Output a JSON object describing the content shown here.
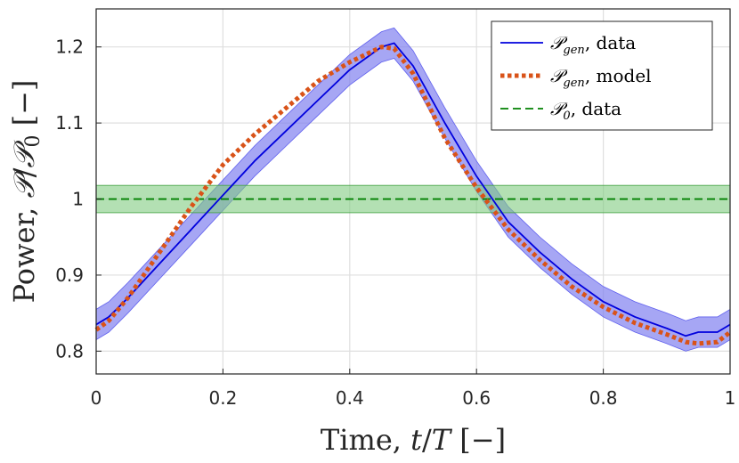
{
  "chart_data": {
    "type": "line",
    "xlabel_parts": [
      "Time, ",
      "t",
      "/",
      "T",
      " [−]"
    ],
    "ylabel_parts": [
      "Power, ",
      "𝒫",
      "/",
      "𝒫",
      "0",
      " [−]"
    ],
    "xlim": [
      0,
      1
    ],
    "ylim": [
      0.77,
      1.25
    ],
    "xticks": [
      0,
      0.2,
      0.4,
      0.6,
      0.8,
      1
    ],
    "xtick_labels": [
      "0",
      "0.2",
      "0.4",
      "0.6",
      "0.8",
      "1"
    ],
    "yticks": [
      0.8,
      0.9,
      1.0,
      1.1,
      1.2
    ],
    "ytick_labels": [
      "0.8",
      "0.9",
      "1",
      "1.1",
      "1.2"
    ],
    "grid": true,
    "legend_position": "top-right",
    "series": [
      {
        "name": "P_gen, data",
        "legend_parts": [
          "𝒫",
          "gen",
          ", data"
        ],
        "color": "#0000dd",
        "style": "solid",
        "band_color": "#8080f0",
        "x": [
          0,
          0.02,
          0.05,
          0.1,
          0.15,
          0.2,
          0.25,
          0.3,
          0.35,
          0.4,
          0.45,
          0.47,
          0.5,
          0.55,
          0.6,
          0.65,
          0.7,
          0.75,
          0.8,
          0.85,
          0.9,
          0.93,
          0.95,
          0.98,
          1.0
        ],
        "y": [
          0.835,
          0.845,
          0.87,
          0.915,
          0.96,
          1.005,
          1.05,
          1.09,
          1.13,
          1.17,
          1.2,
          1.205,
          1.175,
          1.1,
          1.03,
          0.97,
          0.93,
          0.895,
          0.865,
          0.845,
          0.83,
          0.82,
          0.825,
          0.825,
          0.835
        ],
        "band_halfwidth": 0.02
      },
      {
        "name": "P_gen, model",
        "legend_parts": [
          "𝒫",
          "gen",
          ", model"
        ],
        "color": "#d95319",
        "style": "dotted",
        "x": [
          0,
          0.02,
          0.05,
          0.1,
          0.15,
          0.2,
          0.25,
          0.3,
          0.35,
          0.4,
          0.45,
          0.47,
          0.5,
          0.55,
          0.6,
          0.65,
          0.7,
          0.75,
          0.8,
          0.85,
          0.9,
          0.93,
          0.95,
          0.98,
          1.0
        ],
        "y": [
          0.828,
          0.84,
          0.87,
          0.93,
          0.99,
          1.045,
          1.085,
          1.12,
          1.155,
          1.18,
          1.2,
          1.198,
          1.165,
          1.08,
          1.015,
          0.96,
          0.92,
          0.885,
          0.858,
          0.837,
          0.822,
          0.812,
          0.81,
          0.812,
          0.825
        ]
      },
      {
        "name": "P_0, data",
        "legend_parts": [
          "𝒫",
          "0",
          ", data"
        ],
        "color": "#008000",
        "style": "dashed",
        "band_color": "#80cc80",
        "x": [
          0,
          1
        ],
        "y": [
          1.0,
          1.0
        ],
        "band": [
          0.982,
          1.018
        ]
      }
    ]
  }
}
